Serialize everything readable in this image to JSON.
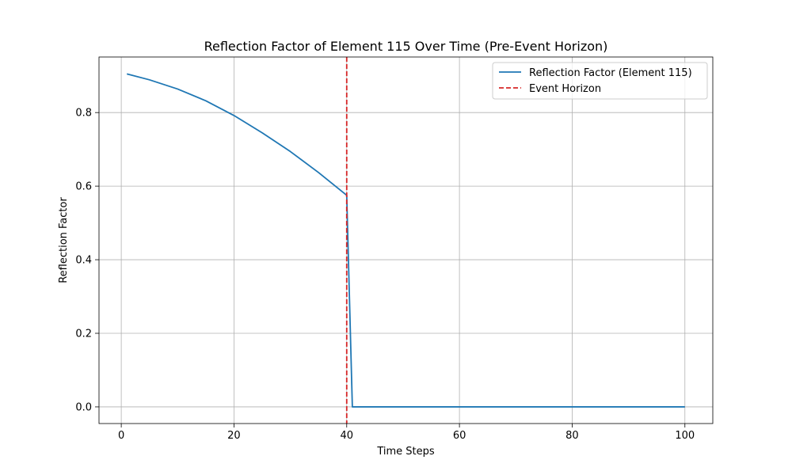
{
  "chart_data": {
    "type": "line",
    "title": "Reflection Factor of Element 115 Over Time (Pre-Event Horizon)",
    "xlabel": "Time Steps",
    "ylabel": "Reflection Factor",
    "xlim": [
      -3.95,
      104.95
    ],
    "ylim": [
      -0.0453,
      0.951
    ],
    "xticks": [
      0,
      20,
      40,
      60,
      80,
      100
    ],
    "yticks": [
      0.0,
      0.2,
      0.4,
      0.6,
      0.8
    ],
    "xtick_labels": [
      "0",
      "20",
      "40",
      "60",
      "80",
      "100"
    ],
    "ytick_labels": [
      "0.0",
      "0.2",
      "0.4",
      "0.6",
      "0.8"
    ],
    "grid": true,
    "legend_position": "top-right",
    "series": [
      {
        "name": "Reflection Factor (Element 115)",
        "color": "#1f77b4",
        "style": "solid",
        "x": [
          1,
          5,
          10,
          15,
          20,
          25,
          30,
          35,
          40,
          41,
          45,
          50,
          60,
          70,
          80,
          90,
          100
        ],
        "y": [
          0.905,
          0.889,
          0.864,
          0.832,
          0.792,
          0.745,
          0.694,
          0.637,
          0.575,
          0.0,
          0.0,
          0.0,
          0.0,
          0.0,
          0.0,
          0.0,
          0.0
        ]
      }
    ],
    "vlines": [
      {
        "name": "Event Horizon",
        "x": 40,
        "color": "#d62728",
        "style": "dashed"
      }
    ]
  }
}
